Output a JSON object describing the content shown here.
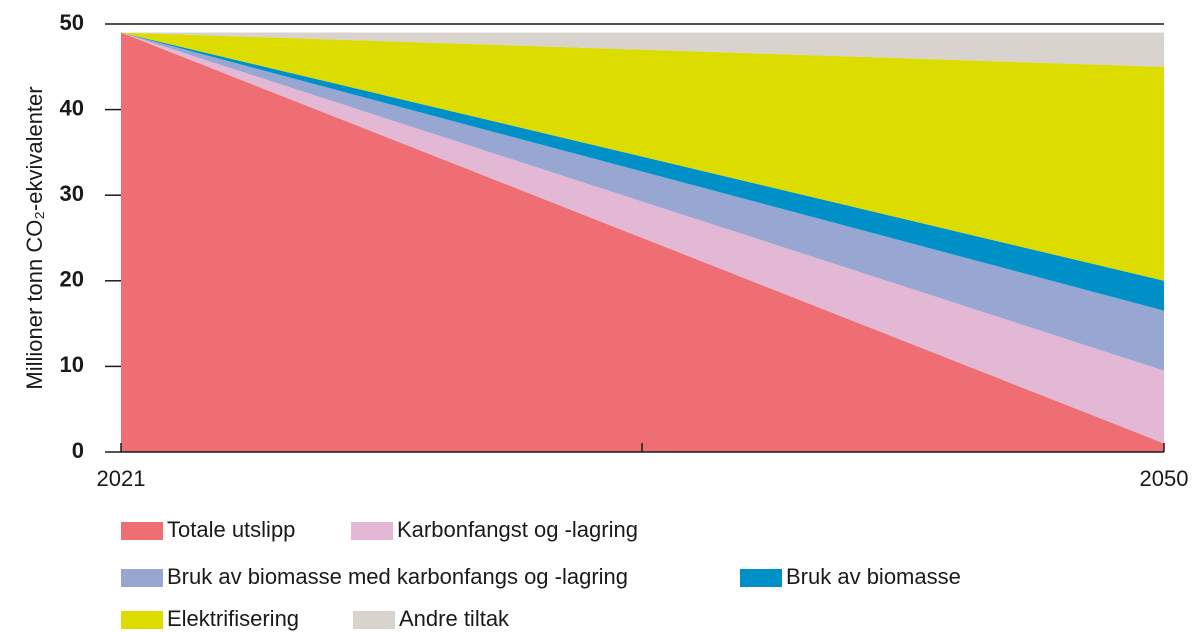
{
  "chart_data": {
    "type": "stacked_area",
    "y_axis_label": "Millioner tonn CO₂-ekvivalenter",
    "x": [
      2021,
      2050
    ],
    "xlim": [
      2021,
      2050
    ],
    "xticks": [
      2021,
      2050
    ],
    "ylim": [
      0,
      50
    ],
    "yticks": [
      0,
      10,
      20,
      30,
      40,
      50
    ],
    "series": [
      {
        "name": "Totale utslipp",
        "color": "#ee6e74",
        "values": [
          49,
          1
        ]
      },
      {
        "name": "Karbonfangst og -lagring",
        "color": "#e3b8d5",
        "values": [
          0,
          8.5
        ]
      },
      {
        "name": "Bruk av biomasse med karbonfangs og -lagring",
        "color": "#98a6d2",
        "values": [
          0,
          7
        ]
      },
      {
        "name": "Bruk av biomasse",
        "color": "#0090c8",
        "values": [
          0,
          3.5
        ]
      },
      {
        "name": "Elektrifisering",
        "color": "#dcdc00",
        "values": [
          0,
          25
        ]
      },
      {
        "name": "Andre tiltak",
        "color": "#d8d3cc",
        "values": [
          0,
          4
        ]
      }
    ]
  }
}
